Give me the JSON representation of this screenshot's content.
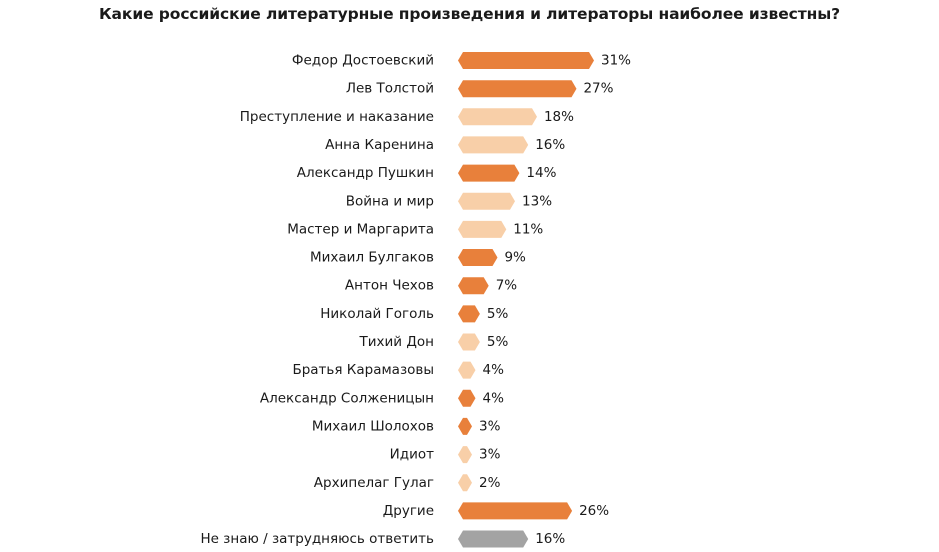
{
  "chart_data": {
    "type": "bar",
    "orientation": "horizontal",
    "title": "Какие российские литературные произведения и литераторы наиболее известны?",
    "categories": [
      "Федор Достоевский",
      "Лев Толстой",
      "Преступление и наказание",
      "Анна Каренина",
      "Александр Пушкин",
      "Война и мир",
      "Мастер и Маргарита",
      "Михаил Булгаков",
      "Антон Чехов",
      "Николай Гоголь",
      "Тихий Дон",
      "Братья Карамазовы",
      "Александр Солженицын",
      "Михаил Шолохов",
      "Идиот",
      "Архипелаг Гулаг",
      "Другие",
      "Не знаю / затрудняюсь ответить"
    ],
    "values": [
      31,
      27,
      18,
      16,
      14,
      13,
      11,
      9,
      7,
      5,
      5,
      4,
      4,
      3,
      3,
      2,
      26,
      16
    ],
    "value_labels": [
      "31%",
      "27%",
      "18%",
      "16%",
      "14%",
      "13%",
      "11%",
      "9%",
      "7%",
      "5%",
      "5%",
      "4%",
      "4%",
      "3%",
      "3%",
      "2%",
      "26%",
      "16%"
    ],
    "kinds": [
      "author",
      "author",
      "work",
      "work",
      "author",
      "work",
      "work",
      "author",
      "author",
      "author",
      "work",
      "work",
      "author",
      "author",
      "work",
      "work",
      "author",
      "unknown"
    ],
    "colors": {
      "author": "#E8803B",
      "work": "#F8CFA8",
      "unknown": "#A3A3A3"
    },
    "xlim": [
      0,
      31
    ],
    "grid": false,
    "legend": "none"
  }
}
